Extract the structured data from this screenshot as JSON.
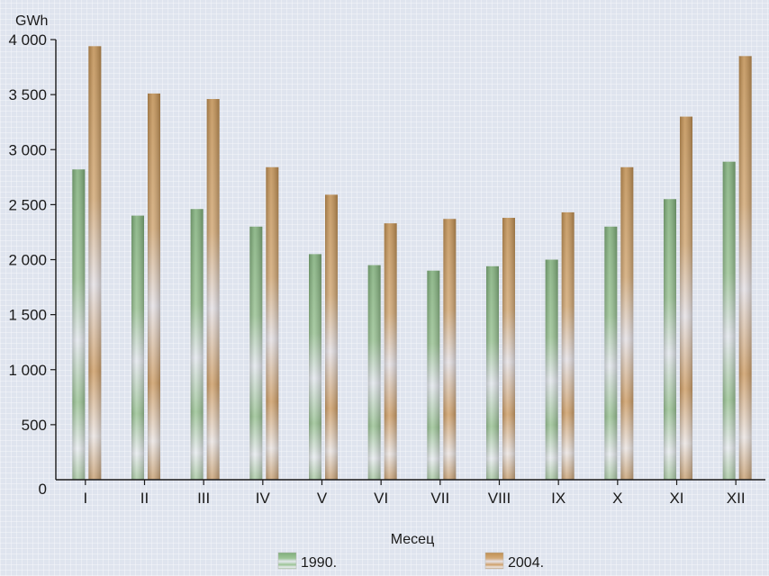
{
  "chart_data": {
    "type": "bar",
    "ylabel": "GWh",
    "xlabel": "Месец",
    "ylim": [
      0,
      4000
    ],
    "yticks": [
      "0",
      "500",
      "1 000",
      "1 500",
      "2 000",
      "2 500",
      "3 000",
      "3 500",
      "4 000"
    ],
    "categories": [
      "I",
      "II",
      "III",
      "IV",
      "V",
      "VI",
      "VII",
      "VIII",
      "IX",
      "X",
      "XI",
      "XII"
    ],
    "series": [
      {
        "name": "1990.",
        "values": [
          2820,
          2400,
          2460,
          2300,
          2050,
          1950,
          1900,
          1940,
          2000,
          2300,
          2550,
          2890
        ]
      },
      {
        "name": "2004.",
        "values": [
          3940,
          3510,
          3460,
          2840,
          2590,
          2330,
          2370,
          2380,
          2430,
          2840,
          3300,
          3850
        ]
      }
    ],
    "grid": false,
    "legend_position": "bottom",
    "colors": {
      "series_1990": "#8fb98a",
      "series_2004": "#c49a62",
      "axis": "#1a1a1a"
    }
  }
}
